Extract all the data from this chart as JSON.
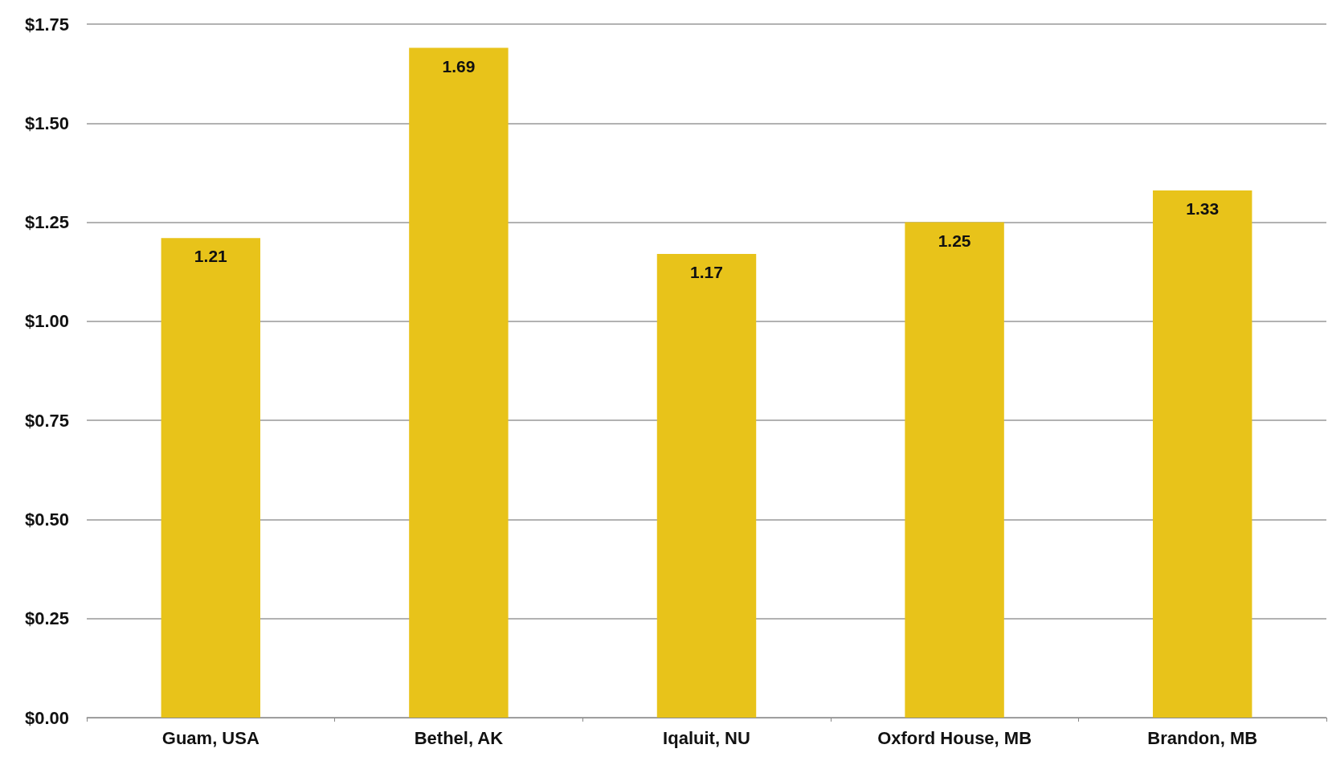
{
  "chart_data": {
    "type": "bar",
    "categories": [
      "Guam, USA",
      "Bethel, AK",
      "Iqaluit, NU",
      "Oxford House, MB",
      "Brandon, MB"
    ],
    "values": [
      1.21,
      1.69,
      1.17,
      1.25,
      1.33
    ],
    "color": "#e8c31a",
    "data_labels": true,
    "grid": "y",
    "ylim": [
      0,
      1.75
    ],
    "yticks": [
      {
        "value": 0,
        "label": "$0.00"
      },
      {
        "value": 0.25,
        "label": "$0.25"
      },
      {
        "value": 0.5,
        "label": "$0.50"
      },
      {
        "value": 0.75,
        "label": "$0.75"
      },
      {
        "value": 1,
        "label": "$1.00"
      },
      {
        "value": 1.25,
        "label": "$1.25"
      },
      {
        "value": 1.5,
        "label": "$1.50"
      },
      {
        "value": 1.75,
        "label": "$1.75"
      }
    ]
  }
}
